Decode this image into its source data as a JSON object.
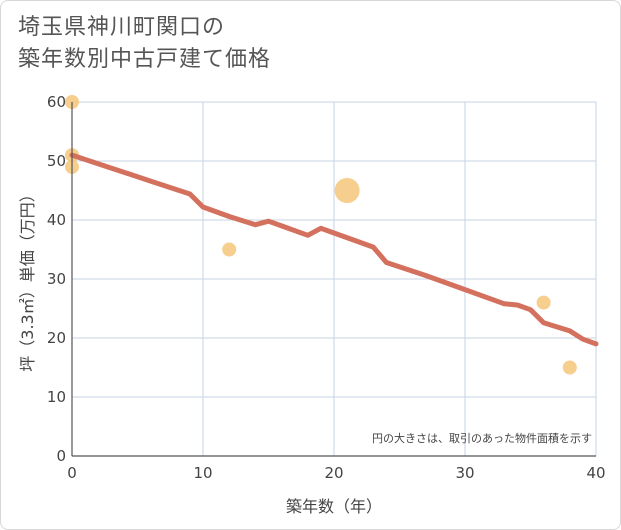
{
  "title_line1": "埼玉県神川町関口の",
  "title_line2": "築年数別中古戸建て価格",
  "chart_data": {
    "type": "scatter+line",
    "xlabel": "築年数（年）",
    "ylabel": "坪（3.3㎡）単価（万円）",
    "xlim": [
      0,
      40
    ],
    "ylim": [
      0,
      60
    ],
    "xticks": [
      0,
      10,
      20,
      30,
      40
    ],
    "yticks": [
      0,
      10,
      20,
      30,
      40,
      50,
      60
    ],
    "note": "円の大きさは、取引のあった物件面積を示す",
    "line_color": "#d4705e",
    "bubble_color": "#f5c57a",
    "trend": {
      "x": [
        0,
        3,
        6,
        9,
        10,
        12,
        14,
        15,
        16,
        18,
        19,
        20,
        23,
        24,
        27,
        30,
        33,
        34,
        35,
        36,
        38,
        39,
        40
      ],
      "y": [
        51,
        48.8,
        46.6,
        44.4,
        42.2,
        40.6,
        39.2,
        39.8,
        39,
        37.4,
        38.6,
        37.8,
        35.4,
        32.8,
        30.6,
        28.2,
        25.8,
        25.6,
        24.8,
        22.6,
        21.2,
        19.8,
        19
      ]
    },
    "points": [
      {
        "x": 0,
        "y": 60,
        "size": 1
      },
      {
        "x": 0,
        "y": 51,
        "size": 1
      },
      {
        "x": 0,
        "y": 49,
        "size": 1
      },
      {
        "x": 12,
        "y": 35,
        "size": 1
      },
      {
        "x": 21,
        "y": 45,
        "size": 3.2
      },
      {
        "x": 36,
        "y": 26,
        "size": 1
      },
      {
        "x": 38,
        "y": 15,
        "size": 1
      }
    ]
  }
}
